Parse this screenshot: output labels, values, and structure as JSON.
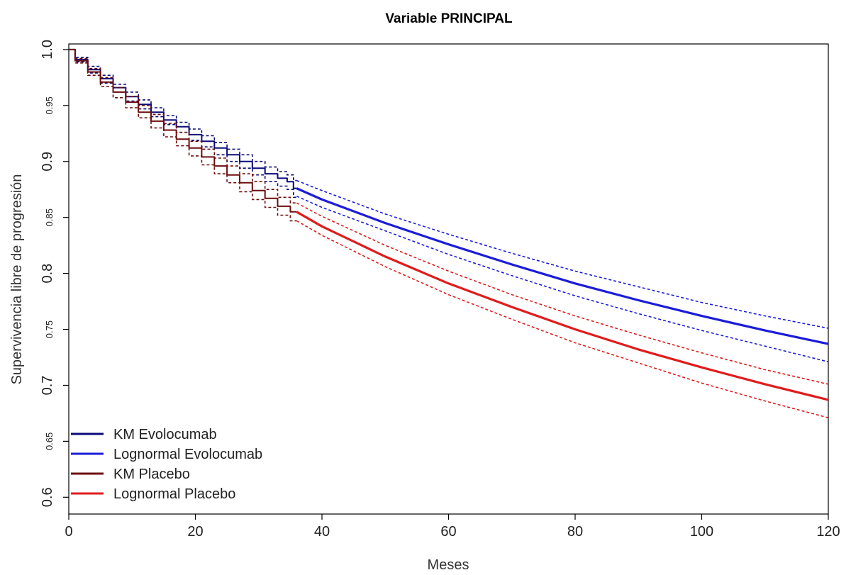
{
  "chart_data": {
    "type": "line",
    "title": "Variable PRINCIPAL",
    "xlabel": "Meses",
    "ylabel": "Supervivencia libre de progresión",
    "xlim": [
      0,
      120
    ],
    "ylim": [
      0.585,
      1.005
    ],
    "x_ticks": [
      0,
      20,
      40,
      60,
      80,
      100,
      120
    ],
    "x_tick_labels": [
      "0",
      "20",
      "40",
      "60",
      "80",
      "100",
      "120"
    ],
    "y_ticks": [
      0.6,
      0.65,
      0.7,
      0.75,
      0.8,
      0.85,
      0.9,
      0.95,
      1.0
    ],
    "y_tick_labels": [
      "0.6",
      "0.65",
      "0.7",
      "0.75",
      "0.8",
      "0.85",
      "0.9",
      "0.95",
      "1.0"
    ],
    "grid": false,
    "legend_position": "bottom-left",
    "series": [
      {
        "name": "KM Evolocumab",
        "color": "#0a0a7a",
        "style": "solid-step",
        "x": [
          0,
          2,
          4,
          6,
          8,
          10,
          12,
          14,
          16,
          18,
          20,
          22,
          24,
          26,
          28,
          30,
          32,
          34,
          35,
          36
        ],
        "y": [
          1.0,
          0.991,
          0.982,
          0.974,
          0.966,
          0.958,
          0.951,
          0.944,
          0.937,
          0.931,
          0.924,
          0.918,
          0.912,
          0.906,
          0.9,
          0.894,
          0.889,
          0.885,
          0.882,
          0.876
        ],
        "ci_lower": [
          1.0,
          0.989,
          0.979,
          0.97,
          0.962,
          0.954,
          0.947,
          0.94,
          0.933,
          0.926,
          0.919,
          0.913,
          0.906,
          0.9,
          0.894,
          0.888,
          0.882,
          0.878,
          0.875,
          0.868
        ],
        "ci_upper": [
          1.0,
          0.993,
          0.985,
          0.977,
          0.969,
          0.962,
          0.955,
          0.948,
          0.941,
          0.935,
          0.929,
          0.923,
          0.917,
          0.911,
          0.906,
          0.9,
          0.895,
          0.891,
          0.888,
          0.883
        ]
      },
      {
        "name": "Lognormal Evolocumab",
        "color": "#1c1cd8",
        "style": "solid",
        "x": [
          36,
          40,
          50,
          60,
          70,
          80,
          90,
          100,
          110,
          120
        ],
        "y": [
          0.876,
          0.866,
          0.845,
          0.826,
          0.808,
          0.791,
          0.776,
          0.762,
          0.749,
          0.737
        ],
        "ci_lower": [
          0.869,
          0.859,
          0.838,
          0.817,
          0.798,
          0.78,
          0.764,
          0.749,
          0.735,
          0.721
        ],
        "ci_upper": [
          0.883,
          0.874,
          0.853,
          0.835,
          0.818,
          0.802,
          0.788,
          0.774,
          0.762,
          0.751
        ]
      },
      {
        "name": "KM Placebo",
        "color": "#6e0d0d",
        "style": "solid-step",
        "x": [
          0,
          2,
          4,
          6,
          8,
          10,
          12,
          14,
          16,
          18,
          20,
          22,
          24,
          26,
          28,
          30,
          32,
          34,
          36
        ],
        "y": [
          1.0,
          0.99,
          0.98,
          0.971,
          0.962,
          0.953,
          0.944,
          0.936,
          0.928,
          0.92,
          0.912,
          0.904,
          0.896,
          0.888,
          0.881,
          0.874,
          0.867,
          0.86,
          0.855
        ],
        "ci_lower": [
          1.0,
          0.988,
          0.977,
          0.967,
          0.957,
          0.948,
          0.939,
          0.93,
          0.922,
          0.914,
          0.905,
          0.897,
          0.889,
          0.881,
          0.873,
          0.866,
          0.859,
          0.852,
          0.847
        ],
        "ci_upper": [
          1.0,
          0.992,
          0.983,
          0.975,
          0.966,
          0.958,
          0.95,
          0.942,
          0.934,
          0.926,
          0.918,
          0.911,
          0.903,
          0.896,
          0.889,
          0.882,
          0.875,
          0.868,
          0.863
        ]
      },
      {
        "name": "Lognormal Placebo",
        "color": "#e01c1c",
        "style": "solid",
        "x": [
          36,
          40,
          50,
          60,
          70,
          80,
          90,
          100,
          110,
          120
        ],
        "y": [
          0.855,
          0.842,
          0.815,
          0.791,
          0.77,
          0.75,
          0.732,
          0.716,
          0.701,
          0.687
        ],
        "ci_lower": [
          0.847,
          0.834,
          0.806,
          0.781,
          0.759,
          0.738,
          0.72,
          0.702,
          0.686,
          0.671
        ],
        "ci_upper": [
          0.863,
          0.851,
          0.825,
          0.802,
          0.781,
          0.762,
          0.745,
          0.729,
          0.714,
          0.701
        ]
      }
    ]
  }
}
